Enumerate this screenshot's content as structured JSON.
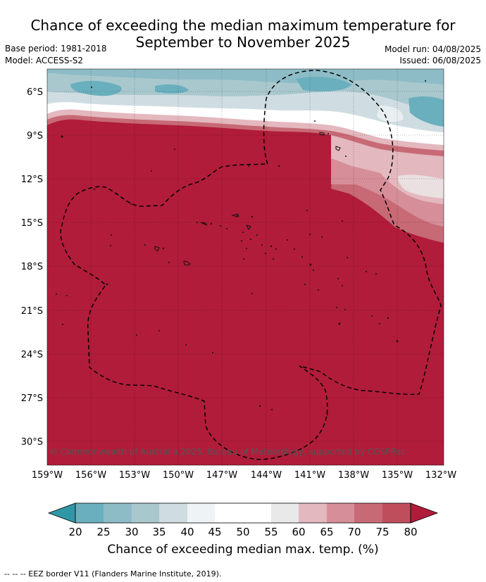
{
  "header": {
    "title_line1": "Chance of exceeding the median maximum temperature for",
    "title_line2": "September to November 2025",
    "base_period": "Base period: 1981-2018",
    "model": "Model: ACCESS-S2",
    "model_run": "Model run: 04/08/2025",
    "issued": "Issued: 06/08/2025"
  },
  "map": {
    "lat_labels": [
      "6°S",
      "9°S",
      "12°S",
      "15°S",
      "18°S",
      "21°S",
      "24°S",
      "27°S",
      "30°S"
    ],
    "lon_labels": [
      "159°W",
      "156°W",
      "153°W",
      "150°W",
      "147°W",
      "144°W",
      "141°W",
      "138°W",
      "135°W",
      "132°W"
    ],
    "credit": "© Commonwealth of Australia 2025, Bureau of Meteorology, supported by COSPPac",
    "dominant_color": "#b11c3a"
  },
  "colorbar": {
    "ticks": [
      "20",
      "25",
      "30",
      "35",
      "40",
      "45",
      "50",
      "55",
      "60",
      "65",
      "70",
      "75",
      "80"
    ],
    "colors": [
      "#2f98a6",
      "#6aafbd",
      "#8dbcc6",
      "#a9c8ce",
      "#cfdde2",
      "#eef3f5",
      "#ffffff",
      "#ffffff",
      "#e9e9e9",
      "#e3b8be",
      "#d68e98",
      "#c76a76",
      "#bf4e5c",
      "#b11c3a"
    ],
    "title": "Chance of exceeding median max. temp. (%)"
  },
  "footer": {
    "eez_note": "--  --  -- EEZ border V11 (Flanders Marine Institute, 2019)."
  }
}
